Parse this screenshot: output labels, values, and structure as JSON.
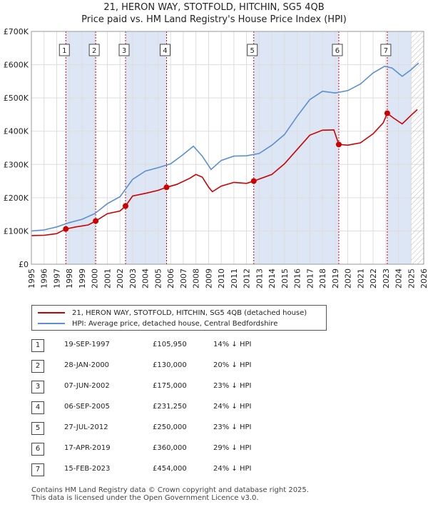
{
  "title_line1": "21, HERON WAY, STOTFOLD, HITCHIN, SG5 4QB",
  "title_line2": "Price paid vs. HM Land Registry's House Price Index (HPI)",
  "chart_data": {
    "type": "line",
    "xlim": [
      1995,
      2026
    ],
    "ylim": [
      0,
      700000
    ],
    "x_ticks": [
      "1995",
      "1996",
      "1997",
      "1998",
      "1999",
      "2000",
      "2001",
      "2002",
      "2003",
      "2004",
      "2005",
      "2006",
      "2007",
      "2008",
      "2009",
      "2010",
      "2011",
      "2012",
      "2013",
      "2014",
      "2015",
      "2016",
      "2017",
      "2018",
      "2019",
      "2020",
      "2021",
      "2022",
      "2023",
      "2024",
      "2025",
      "2026"
    ],
    "y_ticks": [
      {
        "value": 0,
        "label": "£0"
      },
      {
        "value": 100000,
        "label": "£100K"
      },
      {
        "value": 200000,
        "label": "£200K"
      },
      {
        "value": 300000,
        "label": "£300K"
      },
      {
        "value": 400000,
        "label": "£400K"
      },
      {
        "value": 500000,
        "label": "£500K"
      },
      {
        "value": 600000,
        "label": "£600K"
      },
      {
        "value": 700000,
        "label": "£700K"
      }
    ],
    "grid": true,
    "future_hatch_from": 2025.0,
    "series": [
      {
        "name": "21, HERON WAY, STOTFOLD, HITCHIN, SG5 4QB (detached house)",
        "color": "#cc0000",
        "points": [
          [
            1995.0,
            86000
          ],
          [
            1996.0,
            87000
          ],
          [
            1997.0,
            92000
          ],
          [
            1997.72,
            105950
          ],
          [
            1998.5,
            112000
          ],
          [
            1999.5,
            118000
          ],
          [
            2000.08,
            130000
          ],
          [
            2001.0,
            152000
          ],
          [
            2002.0,
            160000
          ],
          [
            2002.44,
            175000
          ],
          [
            2003.0,
            205000
          ],
          [
            2004.0,
            213000
          ],
          [
            2005.0,
            222000
          ],
          [
            2005.68,
            231250
          ],
          [
            2006.5,
            240000
          ],
          [
            2007.5,
            258000
          ],
          [
            2008.0,
            270000
          ],
          [
            2008.5,
            262000
          ],
          [
            2009.0,
            232000
          ],
          [
            2009.3,
            218000
          ],
          [
            2010.0,
            235000
          ],
          [
            2011.0,
            246000
          ],
          [
            2012.0,
            243000
          ],
          [
            2012.57,
            250000
          ],
          [
            2013.0,
            256000
          ],
          [
            2014.0,
            270000
          ],
          [
            2015.0,
            302000
          ],
          [
            2016.0,
            345000
          ],
          [
            2017.0,
            388000
          ],
          [
            2018.0,
            403000
          ],
          [
            2018.9,
            404000
          ],
          [
            2019.29,
            360000
          ],
          [
            2020.0,
            358000
          ],
          [
            2021.0,
            365000
          ],
          [
            2022.0,
            392000
          ],
          [
            2022.8,
            425000
          ],
          [
            2023.12,
            454000
          ],
          [
            2023.6,
            440000
          ],
          [
            2024.3,
            422000
          ],
          [
            2025.0,
            448000
          ],
          [
            2025.5,
            465000
          ]
        ]
      },
      {
        "name": "HPI: Average price, detached house, Central Bedfordshire",
        "color": "#5b8fd0",
        "points": [
          [
            1995.0,
            100000
          ],
          [
            1996.0,
            103000
          ],
          [
            1997.0,
            112000
          ],
          [
            1998.0,
            125000
          ],
          [
            1999.0,
            135000
          ],
          [
            2000.0,
            152000
          ],
          [
            2001.0,
            182000
          ],
          [
            2002.0,
            203000
          ],
          [
            2003.0,
            255000
          ],
          [
            2004.0,
            280000
          ],
          [
            2005.0,
            290000
          ],
          [
            2006.0,
            302000
          ],
          [
            2007.0,
            330000
          ],
          [
            2007.8,
            355000
          ],
          [
            2008.5,
            325000
          ],
          [
            2009.2,
            285000
          ],
          [
            2010.0,
            312000
          ],
          [
            2011.0,
            325000
          ],
          [
            2012.0,
            326000
          ],
          [
            2013.0,
            333000
          ],
          [
            2014.0,
            358000
          ],
          [
            2015.0,
            390000
          ],
          [
            2016.0,
            445000
          ],
          [
            2017.0,
            495000
          ],
          [
            2018.0,
            520000
          ],
          [
            2019.0,
            515000
          ],
          [
            2020.0,
            522000
          ],
          [
            2021.0,
            542000
          ],
          [
            2022.0,
            575000
          ],
          [
            2022.9,
            595000
          ],
          [
            2023.5,
            590000
          ],
          [
            2024.3,
            565000
          ],
          [
            2025.0,
            585000
          ],
          [
            2025.6,
            605000
          ]
        ]
      }
    ],
    "sales": [
      {
        "num": "1",
        "x": 1997.72,
        "price": 105950
      },
      {
        "num": "2",
        "x": 2000.08,
        "price": 130000
      },
      {
        "num": "3",
        "x": 2002.44,
        "price": 175000
      },
      {
        "num": "4",
        "x": 2005.68,
        "price": 231250
      },
      {
        "num": "5",
        "x": 2012.57,
        "price": 250000
      },
      {
        "num": "6",
        "x": 2019.29,
        "price": 360000
      },
      {
        "num": "7",
        "x": 2023.12,
        "price": 454000
      }
    ],
    "shaded_bands": [
      [
        1997.72,
        2000.08
      ],
      [
        2002.44,
        2005.68
      ],
      [
        2012.57,
        2019.29
      ],
      [
        2023.12,
        2025.0
      ]
    ],
    "colors": {
      "sale_line": "#cc0000",
      "hpi_line": "#5b8fd0",
      "band": "#dde6f4",
      "grid": "#dddddd",
      "marker_line": "#cc0000"
    }
  },
  "legend": {
    "property_label": "21, HERON WAY, STOTFOLD, HITCHIN, SG5 4QB (detached house)",
    "hpi_label": "HPI: Average price, detached house, Central Bedfordshire"
  },
  "transactions": [
    {
      "num": "1",
      "date": "19-SEP-1997",
      "price": "£105,950",
      "hpi": "14% ↓ HPI"
    },
    {
      "num": "2",
      "date": "28-JAN-2000",
      "price": "£130,000",
      "hpi": "20% ↓ HPI"
    },
    {
      "num": "3",
      "date": "07-JUN-2002",
      "price": "£175,000",
      "hpi": "23% ↓ HPI"
    },
    {
      "num": "4",
      "date": "06-SEP-2005",
      "price": "£231,250",
      "hpi": "24% ↓ HPI"
    },
    {
      "num": "5",
      "date": "27-JUL-2012",
      "price": "£250,000",
      "hpi": "23% ↓ HPI"
    },
    {
      "num": "6",
      "date": "17-APR-2019",
      "price": "£360,000",
      "hpi": "29% ↓ HPI"
    },
    {
      "num": "7",
      "date": "15-FEB-2023",
      "price": "£454,000",
      "hpi": "24% ↓ HPI"
    }
  ],
  "footer": {
    "line1": "Contains HM Land Registry data © Crown copyright and database right 2025.",
    "line2": "This data is licensed under the Open Government Licence v3.0."
  }
}
